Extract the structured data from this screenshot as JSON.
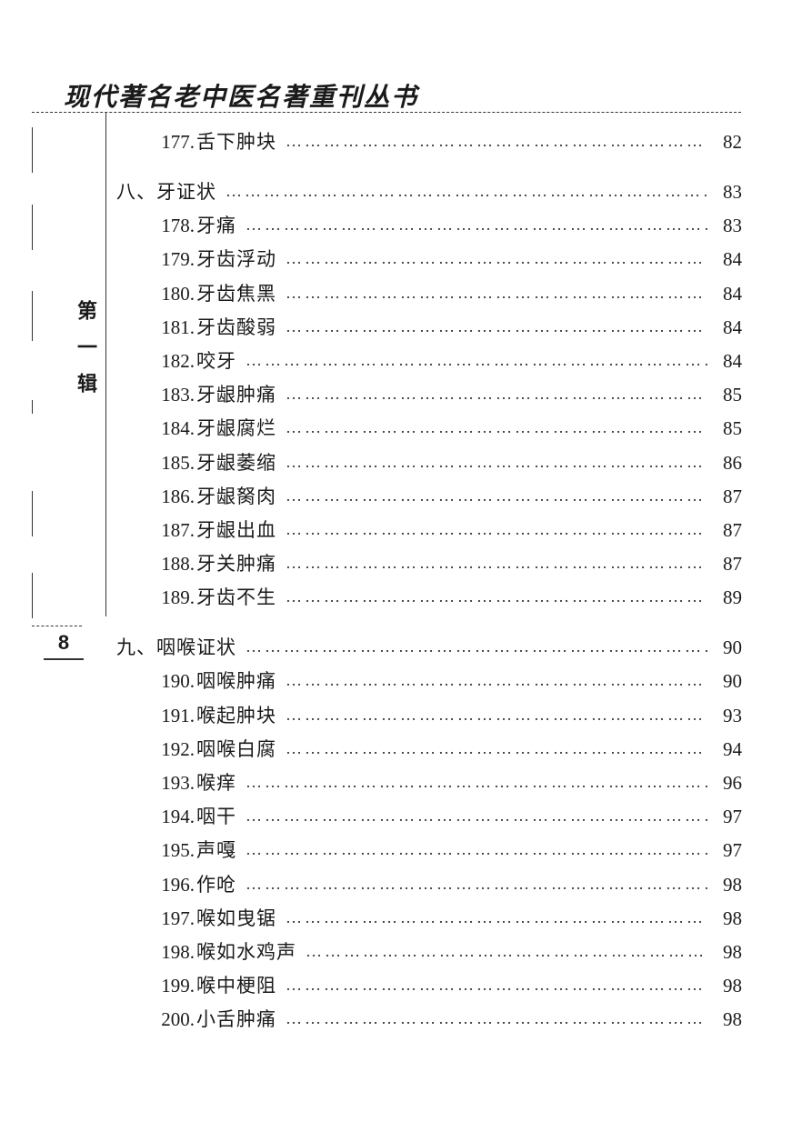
{
  "header_title": "现代著名老中医名著重刊丛书",
  "side_label": "第一辑",
  "page_number": "8",
  "leader_dots": "……………………………………………………………………",
  "toc": [
    {
      "type": "item",
      "num": "177.",
      "label": "舌下肿块",
      "page": "82",
      "first": true
    },
    {
      "type": "section",
      "num": "八、",
      "label": "牙证状",
      "page": "83"
    },
    {
      "type": "item",
      "num": "178.",
      "label": "牙痛",
      "page": "83"
    },
    {
      "type": "item",
      "num": "179.",
      "label": "牙齿浮动",
      "page": "84"
    },
    {
      "type": "item",
      "num": "180.",
      "label": "牙齿焦黑",
      "page": "84"
    },
    {
      "type": "item",
      "num": "181.",
      "label": "牙齿酸弱",
      "page": "84"
    },
    {
      "type": "item",
      "num": "182.",
      "label": "咬牙",
      "page": "84"
    },
    {
      "type": "item",
      "num": "183.",
      "label": "牙龈肿痛",
      "page": "85"
    },
    {
      "type": "item",
      "num": "184.",
      "label": "牙龈腐烂",
      "page": "85"
    },
    {
      "type": "item",
      "num": "185.",
      "label": "牙龈萎缩",
      "page": "86"
    },
    {
      "type": "item",
      "num": "186.",
      "label": "牙龈胬肉",
      "page": "87"
    },
    {
      "type": "item",
      "num": "187.",
      "label": "牙龈出血",
      "page": "87"
    },
    {
      "type": "item",
      "num": "188.",
      "label": "牙关肿痛",
      "page": "87"
    },
    {
      "type": "item",
      "num": "189.",
      "label": "牙齿不生",
      "page": "89"
    },
    {
      "type": "section",
      "num": "九、",
      "label": "咽喉证状",
      "page": "90"
    },
    {
      "type": "item",
      "num": "190.",
      "label": "咽喉肿痛",
      "page": "90"
    },
    {
      "type": "item",
      "num": "191.",
      "label": "喉起肿块",
      "page": "93"
    },
    {
      "type": "item",
      "num": "192.",
      "label": "咽喉白腐",
      "page": "94"
    },
    {
      "type": "item",
      "num": "193.",
      "label": "喉痒",
      "page": "96"
    },
    {
      "type": "item",
      "num": "194.",
      "label": "咽干",
      "page": "97"
    },
    {
      "type": "item",
      "num": "195.",
      "label": "声嘎",
      "page": "97"
    },
    {
      "type": "item",
      "num": "196.",
      "label": "作呛",
      "page": "98"
    },
    {
      "type": "item",
      "num": "197.",
      "label": "喉如曳锯",
      "page": "98"
    },
    {
      "type": "item",
      "num": "198.",
      "label": "喉如水鸡声",
      "page": "98"
    },
    {
      "type": "item",
      "num": "199.",
      "label": "喉中梗阻",
      "page": "98"
    },
    {
      "type": "item",
      "num": "200.",
      "label": "小舌肿痛",
      "page": "98"
    }
  ]
}
